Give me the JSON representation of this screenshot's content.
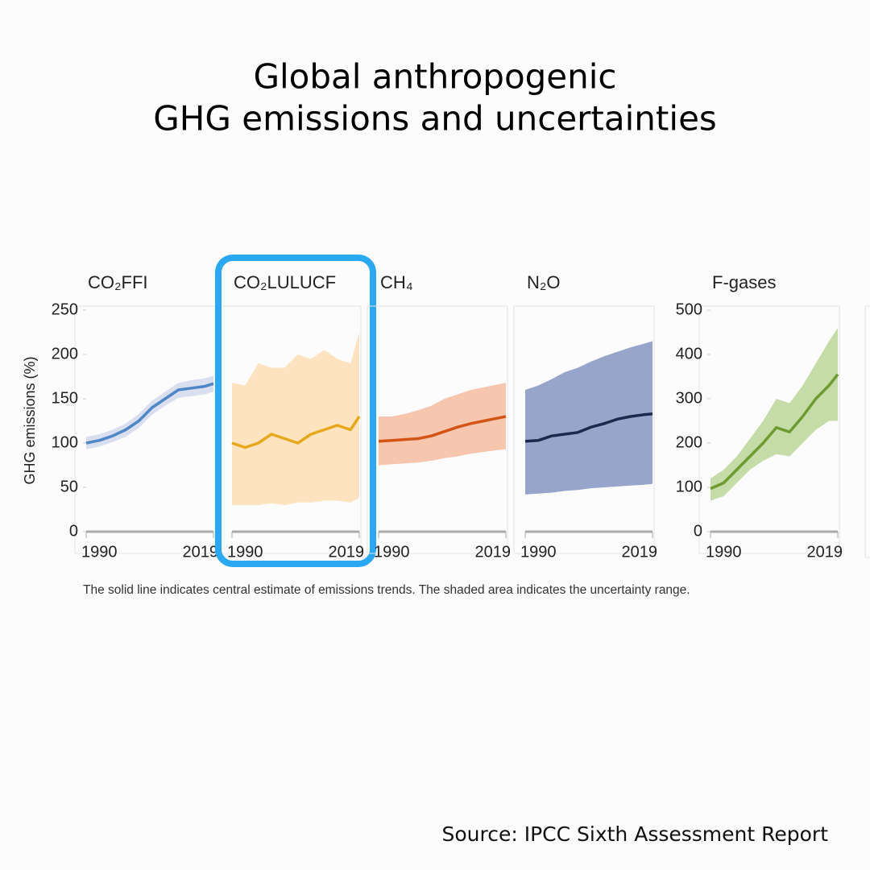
{
  "title": [
    "Global anthropogenic",
    "GHG emissions and uncertainties"
  ],
  "caption": "The solid line indicates central estimate of emissions trends. The shaded area indicates the uncertainty range.",
  "source": "Source: IPCC Sixth Assessment Report",
  "chart_data": [
    {
      "type": "line",
      "title": "CO₂FFI",
      "ylabel": "GHG emissions (%)",
      "x": [
        1990,
        1993,
        1996,
        1999,
        2002,
        2005,
        2008,
        2011,
        2014,
        2017,
        2019
      ],
      "values": [
        100,
        103,
        108,
        115,
        125,
        140,
        150,
        160,
        162,
        164,
        167
      ],
      "lower": [
        93,
        96,
        101,
        107,
        117,
        132,
        142,
        151,
        153,
        155,
        158
      ],
      "upper": [
        107,
        110,
        115,
        122,
        133,
        148,
        158,
        168,
        171,
        173,
        176
      ],
      "color": "#4f86c6",
      "band_color": "#d9dfee",
      "xlim": [
        1990,
        2019
      ],
      "xticks": [
        1990,
        2019
      ],
      "ylim": [
        0,
        250
      ],
      "yticks": [
        0,
        50,
        100,
        150,
        200,
        250
      ]
    },
    {
      "type": "line",
      "title": "CO₂LULUCF",
      "highlight": true,
      "x": [
        1990,
        1993,
        1996,
        1999,
        2002,
        2005,
        2008,
        2011,
        2014,
        2017,
        2019
      ],
      "values": [
        100,
        95,
        100,
        110,
        105,
        100,
        110,
        115,
        120,
        115,
        130
      ],
      "lower": [
        30,
        30,
        30,
        32,
        30,
        33,
        33,
        35,
        35,
        33,
        38
      ],
      "upper": [
        168,
        165,
        190,
        185,
        185,
        200,
        195,
        205,
        195,
        190,
        225
      ],
      "color": "#e8a81c",
      "band_color": "#fde3c0",
      "xlim": [
        1990,
        2019
      ],
      "xticks": [
        1990,
        2019
      ],
      "ylim": [
        0,
        250
      ]
    },
    {
      "type": "line",
      "title": "CH₄",
      "x": [
        1990,
        1993,
        1996,
        1999,
        2002,
        2005,
        2008,
        2011,
        2014,
        2017,
        2019
      ],
      "values": [
        102,
        103,
        104,
        105,
        108,
        113,
        118,
        122,
        125,
        128,
        130
      ],
      "lower": [
        75,
        76,
        77,
        78,
        80,
        83,
        85,
        88,
        90,
        92,
        93
      ],
      "upper": [
        130,
        130,
        133,
        137,
        142,
        150,
        155,
        160,
        163,
        166,
        168
      ],
      "color": "#d35414",
      "band_color": "#f6c7ae",
      "xlim": [
        1990,
        2019
      ],
      "xticks": [
        1990,
        2019
      ],
      "ylim": [
        0,
        250
      ]
    },
    {
      "type": "line",
      "title": "N₂O",
      "x": [
        1990,
        1993,
        1996,
        1999,
        2002,
        2005,
        2008,
        2011,
        2014,
        2017,
        2019
      ],
      "values": [
        102,
        103,
        108,
        110,
        112,
        118,
        122,
        127,
        130,
        132,
        133
      ],
      "lower": [
        42,
        43,
        44,
        46,
        47,
        49,
        50,
        51,
        52,
        53,
        54
      ],
      "upper": [
        160,
        165,
        172,
        180,
        185,
        192,
        198,
        203,
        208,
        212,
        215
      ],
      "color": "#1b2a4a",
      "band_color": "#97a5cb",
      "xlim": [
        1990,
        2019
      ],
      "xticks": [
        1990,
        2019
      ],
      "ylim": [
        0,
        250
      ]
    },
    {
      "type": "line",
      "title": "F-gases",
      "x": [
        1990,
        1993,
        1996,
        1999,
        2002,
        2005,
        2008,
        2011,
        2014,
        2017,
        2019
      ],
      "values": [
        97,
        110,
        140,
        170,
        200,
        235,
        225,
        260,
        300,
        330,
        355
      ],
      "lower": [
        70,
        80,
        110,
        140,
        160,
        175,
        170,
        200,
        230,
        250,
        250
      ],
      "upper": [
        120,
        140,
        170,
        210,
        250,
        300,
        290,
        330,
        380,
        430,
        460
      ],
      "color": "#6e9b2f",
      "band_color": "#c6dca8",
      "xlim": [
        1990,
        2019
      ],
      "xticks": [
        1990,
        2019
      ],
      "ylim": [
        0,
        500
      ],
      "yticks": [
        0,
        100,
        200,
        300,
        400,
        500
      ]
    }
  ]
}
